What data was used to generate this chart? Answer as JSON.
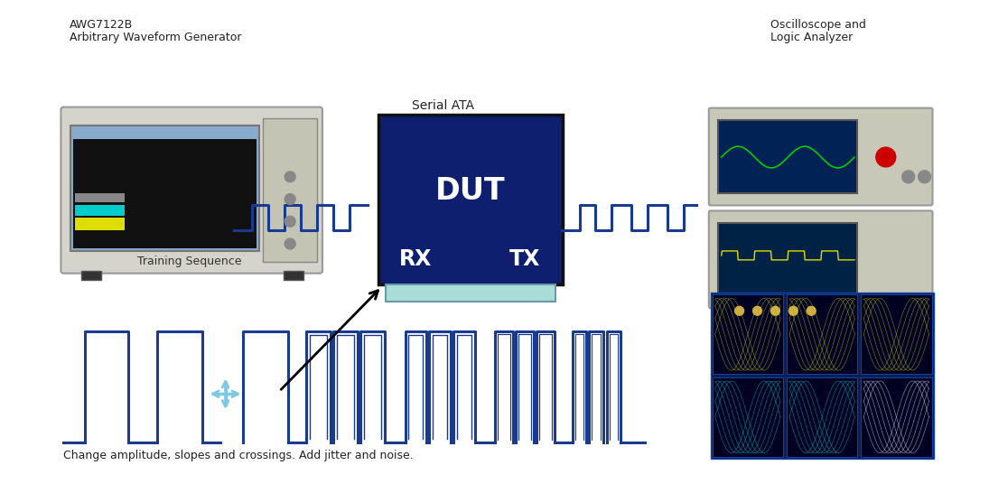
{
  "bg_color": "#ffffff",
  "awg_label1": "AWG7122B",
  "awg_label2": "Arbitrary Waveform Generator",
  "osc_label1": "Oscilloscope and",
  "osc_label2": "Logic Analyzer",
  "serial_ata_label": "Serial ATA",
  "dut_label": "DUT",
  "rx_label": "RX",
  "tx_label": "TX",
  "training_seq_label": "Training Sequence",
  "bottom_label": "Change amplitude, slopes and crossings. Add jitter and noise.",
  "signal_color": "#1a3a8f",
  "cursor_color": "#7ec8e3"
}
